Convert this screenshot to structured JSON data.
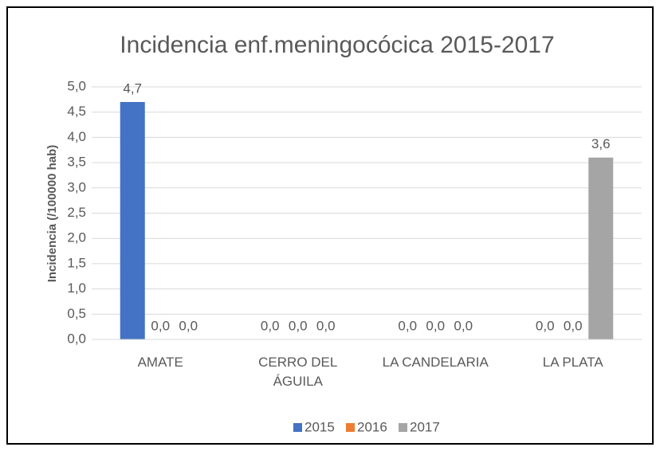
{
  "chart_data": {
    "type": "bar",
    "title": "Incidencia enf.meningocócica 2015-2017",
    "y_label": "Incidencia (/100000 hab)",
    "categories": [
      "AMATE",
      "CERRO DEL ÁGUILA",
      "LA CANDELARIA",
      "LA PLATA"
    ],
    "series": [
      {
        "name": "2015",
        "color": "#4472c4",
        "values": [
          4.7,
          0,
          0,
          0
        ],
        "value_labels": [
          "4,7",
          "0,0",
          "0,0",
          "0,0"
        ]
      },
      {
        "name": "2016",
        "color": "#ed7d31",
        "values": [
          0,
          0,
          0,
          0
        ],
        "value_labels": [
          "0,0",
          "0,0",
          "0,0",
          "0,0"
        ]
      },
      {
        "name": "2017",
        "color": "#a5a5a5",
        "values": [
          0,
          0,
          0,
          3.6
        ],
        "value_labels": [
          "0,0",
          "0,0",
          "0,0",
          "3,6"
        ]
      }
    ],
    "ylim": [
      0,
      5
    ],
    "yticks": [
      {
        "value": 0,
        "label": "0,0"
      },
      {
        "value": 0.5,
        "label": "0,5"
      },
      {
        "value": 1,
        "label": "1,0"
      },
      {
        "value": 1.5,
        "label": "1,5"
      },
      {
        "value": 2,
        "label": "2,0"
      },
      {
        "value": 2.5,
        "label": "2,5"
      },
      {
        "value": 3,
        "label": "3,0"
      },
      {
        "value": 3.5,
        "label": "3,5"
      },
      {
        "value": 4,
        "label": "4,0"
      },
      {
        "value": 4.5,
        "label": "4,5"
      },
      {
        "value": 5,
        "label": "5,0"
      }
    ],
    "grid": true,
    "legend": "bottom"
  }
}
